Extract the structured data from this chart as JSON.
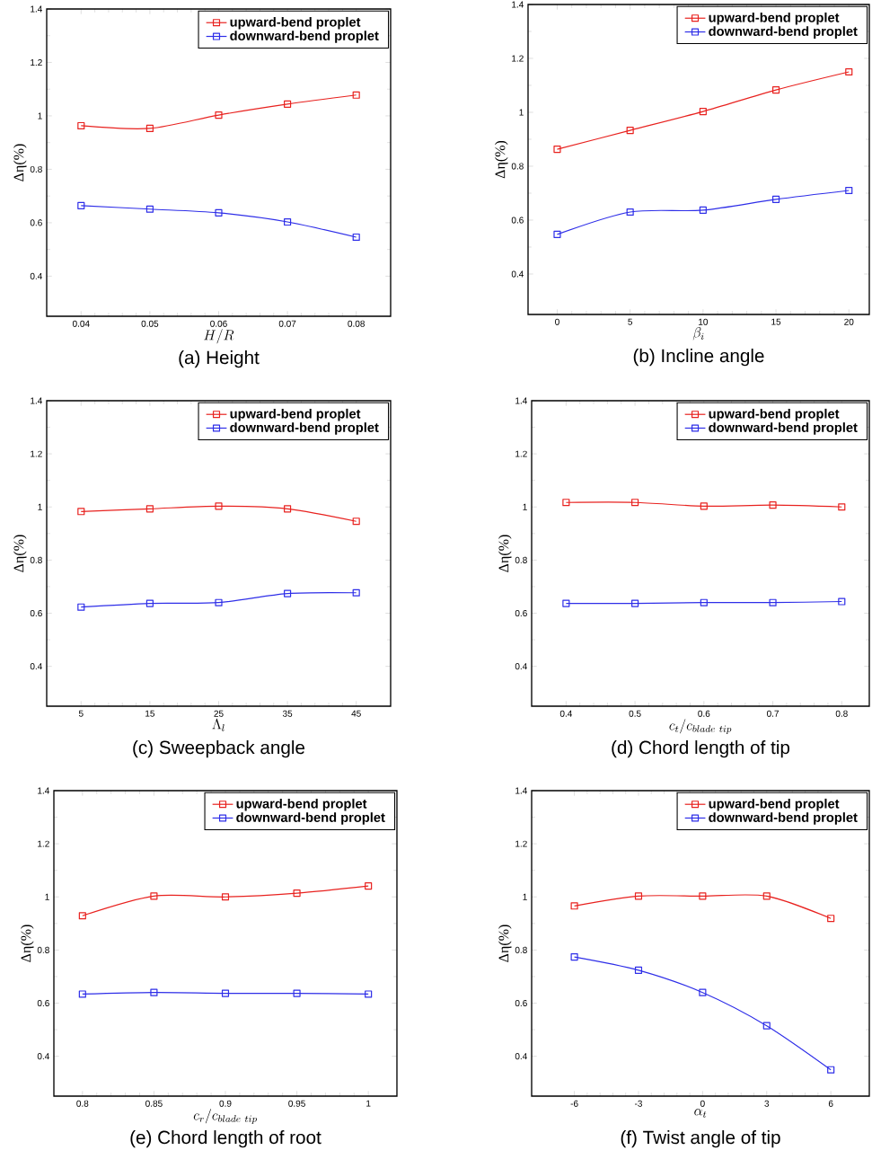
{
  "chart_data": [
    {
      "type": "line",
      "title": "(a) Height",
      "xlabel": "H/R",
      "ylabel": "Δη(%)",
      "x": [
        0.04,
        0.05,
        0.06,
        0.07,
        0.08
      ],
      "xlim": [
        0.035,
        0.085
      ],
      "xticks": [
        0.04,
        0.05,
        0.06,
        0.07,
        0.08
      ],
      "ylim": [
        0.25,
        1.4
      ],
      "yticks": [
        0.4,
        0.6,
        0.8,
        1,
        1.2,
        1.4
      ],
      "legend": "top right",
      "marker": "square",
      "series": [
        {
          "name": "upward-bend proplet",
          "color": "#e8221f",
          "values": [
            0.963,
            0.953,
            1.003,
            1.044,
            1.078
          ]
        },
        {
          "name": "downward-bend proplet",
          "color": "#2e2ee8",
          "values": [
            0.664,
            0.651,
            0.637,
            0.603,
            0.546
          ]
        }
      ]
    },
    {
      "type": "line",
      "title": "(b) Incline angle",
      "xlabel": "\\beta_{i}",
      "ylabel": "Δη(%)",
      "x": [
        0,
        5,
        10,
        15,
        20
      ],
      "xlim": [
        -2,
        21.4
      ],
      "xticks": [
        0,
        5,
        10,
        15,
        20
      ],
      "ylim": [
        0.25,
        1.4
      ],
      "yticks": [
        0.4,
        0.6,
        0.8,
        1,
        1.2,
        1.4
      ],
      "legend": "top right",
      "marker": "square",
      "series": [
        {
          "name": "upward-bend proplet",
          "color": "#e8221f",
          "values": [
            0.863,
            0.933,
            1.003,
            1.083,
            1.15
          ]
        },
        {
          "name": "downward-bend proplet",
          "color": "#2e2ee8",
          "values": [
            0.547,
            0.63,
            0.637,
            0.677,
            0.71
          ]
        }
      ]
    },
    {
      "type": "line",
      "title": "(c) Sweepback angle",
      "xlabel": "\\Lambda_{l}",
      "ylabel": "Δη(%)",
      "x": [
        5,
        15,
        25,
        35,
        45
      ],
      "xlim": [
        0,
        50
      ],
      "xticks": [
        5,
        15,
        25,
        35,
        45
      ],
      "ylim": [
        0.25,
        1.4
      ],
      "yticks": [
        0.4,
        0.6,
        0.8,
        1,
        1.2,
        1.4
      ],
      "legend": "top right",
      "marker": "square",
      "series": [
        {
          "name": "upward-bend proplet",
          "color": "#e8221f",
          "values": [
            0.983,
            0.993,
            1.003,
            0.993,
            0.946
          ]
        },
        {
          "name": "downward-bend proplet",
          "color": "#2e2ee8",
          "values": [
            0.623,
            0.637,
            0.64,
            0.674,
            0.677
          ]
        }
      ]
    },
    {
      "type": "line",
      "title": "(d) Chord length of tip",
      "xlabel": "c_{t}/c_{blade\\ tip}",
      "ylabel": "Δη(%)",
      "x": [
        0.4,
        0.5,
        0.6,
        0.7,
        0.8
      ],
      "xlim": [
        0.35,
        0.84
      ],
      "xticks": [
        0.4,
        0.5,
        0.6,
        0.7,
        0.8
      ],
      "ylim": [
        0.25,
        1.4
      ],
      "yticks": [
        0.4,
        0.6,
        0.8,
        1,
        1.2,
        1.4
      ],
      "legend": "top right",
      "marker": "square",
      "series": [
        {
          "name": "upward-bend proplet",
          "color": "#e8221f",
          "values": [
            1.017,
            1.017,
            1.003,
            1.007,
            1.0
          ]
        },
        {
          "name": "downward-bend proplet",
          "color": "#2e2ee8",
          "values": [
            0.637,
            0.637,
            0.64,
            0.64,
            0.644
          ]
        }
      ]
    },
    {
      "type": "line",
      "title": "(e) Chord length of root",
      "xlabel": "c_{r}/c_{blade\\ tip}",
      "ylabel": "Δη(%)",
      "x": [
        0.8,
        0.85,
        0.9,
        0.95,
        1
      ],
      "xlim": [
        0.78,
        1.02
      ],
      "xticks": [
        0.8,
        0.85,
        0.9,
        0.95,
        1
      ],
      "ylim": [
        0.25,
        1.4
      ],
      "yticks": [
        0.4,
        0.6,
        0.8,
        1,
        1.2,
        1.4
      ],
      "legend": "top right",
      "marker": "square",
      "series": [
        {
          "name": "upward-bend proplet",
          "color": "#e8221f",
          "values": [
            0.929,
            1.003,
            1.0,
            1.014,
            1.041
          ]
        },
        {
          "name": "downward-bend proplet",
          "color": "#2e2ee8",
          "values": [
            0.634,
            0.64,
            0.637,
            0.637,
            0.634
          ]
        }
      ]
    },
    {
      "type": "line",
      "title": "(f) Twist angle of tip",
      "xlabel": "\\alpha_{t}",
      "ylabel": "Δη(%)",
      "x": [
        -6,
        -3,
        0,
        3,
        6
      ],
      "xlim": [
        -8,
        7.8
      ],
      "xticks": [
        -6,
        -3,
        0,
        3,
        6
      ],
      "ylim": [
        0.25,
        1.4
      ],
      "yticks": [
        0.4,
        0.6,
        0.8,
        1,
        1.2,
        1.4
      ],
      "legend": "top right",
      "marker": "square",
      "series": [
        {
          "name": "upward-bend proplet",
          "color": "#e8221f",
          "values": [
            0.966,
            1.003,
            1.003,
            1.003,
            0.919
          ]
        },
        {
          "name": "downward-bend proplet",
          "color": "#2e2ee8",
          "values": [
            0.774,
            0.724,
            0.64,
            0.515,
            0.349
          ]
        }
      ]
    }
  ]
}
